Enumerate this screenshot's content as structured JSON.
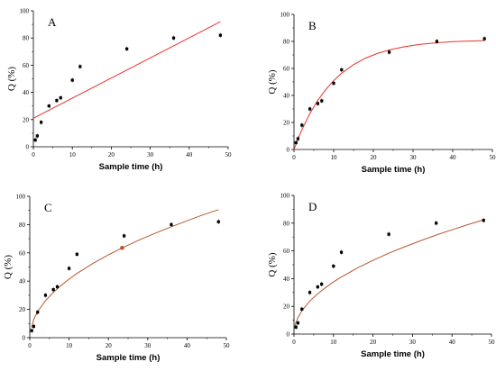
{
  "chart_data": [
    {
      "panel": "A",
      "type": "scatter",
      "xlabel": "Sample time (h)",
      "ylabel": "Q (%)",
      "xlim": [
        0,
        50
      ],
      "ylim": [
        0,
        100
      ],
      "xticks": [
        "0",
        "10",
        "20",
        "30",
        "40",
        "50"
      ],
      "yticks": [
        "0",
        "20",
        "40",
        "60",
        "80",
        "100"
      ],
      "points": {
        "x": [
          0.5,
          1,
          2,
          4,
          6,
          7,
          10,
          12,
          24,
          36,
          48
        ],
        "y": [
          5,
          8,
          18,
          30,
          34,
          36,
          49,
          59,
          72,
          80,
          82
        ]
      },
      "fit": {
        "model": "linear",
        "color": "#e8312b",
        "x": [
          0,
          48
        ],
        "y": [
          21,
          92
        ]
      }
    },
    {
      "panel": "B",
      "type": "scatter",
      "xlabel": "Sample time (h)",
      "ylabel": "Q (%)",
      "xlim": [
        0,
        50
      ],
      "ylim": [
        0,
        100
      ],
      "xticks": [
        "0",
        "10",
        "20",
        "30",
        "40",
        "50"
      ],
      "yticks": [
        "0",
        "20",
        "40",
        "60",
        "80",
        "100"
      ],
      "points": {
        "x": [
          0.5,
          1,
          2,
          4,
          6,
          7,
          10,
          12,
          24,
          36,
          48
        ],
        "y": [
          5,
          8,
          18,
          30,
          34,
          36,
          49,
          59,
          72,
          80,
          82
        ]
      },
      "fit": {
        "model": "first-order",
        "color": "#e8312b",
        "x": [
          0,
          1,
          2,
          4,
          6,
          8,
          10,
          12,
          15,
          18,
          21,
          24,
          28,
          32,
          36,
          40,
          44,
          48
        ],
        "y": [
          0,
          7.7,
          14.7,
          26.6,
          36.4,
          44.4,
          51.0,
          56.5,
          62.8,
          67.6,
          71.1,
          73.7,
          76.2,
          77.9,
          79.0,
          79.8,
          80.3,
          80.6
        ]
      }
    },
    {
      "panel": "C",
      "type": "scatter",
      "xlabel": "Sample time (h)",
      "ylabel": "Q (%)",
      "xlim": [
        0,
        50
      ],
      "ylim": [
        0,
        100
      ],
      "xticks": [
        "0",
        "10",
        "20",
        "30",
        "40",
        "50"
      ],
      "yticks": [
        "0",
        "20",
        "40",
        "60",
        "80",
        "100"
      ],
      "points": {
        "x": [
          0.5,
          1,
          2,
          4,
          6,
          7,
          10,
          12,
          24,
          36,
          48
        ],
        "y": [
          5,
          8,
          18,
          30,
          34,
          36,
          49,
          59,
          72,
          80,
          82
        ]
      },
      "fit": {
        "model": "power",
        "color": "#b5582c",
        "x": [
          0.5,
          1,
          2,
          4,
          6,
          8,
          10,
          12,
          16,
          20,
          23.5,
          28,
          32,
          36,
          40,
          44,
          48
        ],
        "y": [
          7.3,
          13,
          18.5,
          26.2,
          32.1,
          37.1,
          41.4,
          45.4,
          52.4,
          58.6,
          63.5,
          69.3,
          74,
          78.5,
          82.7,
          86.8,
          90.6
        ]
      },
      "marker": {
        "x": 23.5,
        "y": 63.5,
        "color": "#b5582c"
      }
    },
    {
      "panel": "D",
      "type": "scatter",
      "xlabel": "Sample time (h)",
      "ylabel": "Q (%)",
      "xlim": [
        0,
        50
      ],
      "ylim": [
        0,
        100
      ],
      "xticks": [
        "0",
        "10",
        "20",
        "30",
        "40",
        "50"
      ],
      "yticks": [
        "0",
        "20",
        "40",
        "60",
        "80",
        "100"
      ],
      "points": {
        "x": [
          0.5,
          1,
          2,
          4,
          6,
          7,
          10,
          12,
          24,
          36,
          48
        ],
        "y": [
          5,
          8,
          18,
          30,
          34,
          36,
          49,
          59,
          72,
          80,
          82
        ]
      },
      "fit": {
        "model": "Higuchi",
        "color": "#b5582c",
        "x": [
          0.2,
          0.5,
          1,
          2,
          4,
          6,
          8,
          10,
          12,
          16,
          20,
          24,
          28,
          32,
          36,
          40,
          44,
          48
        ],
        "y": [
          5.5,
          8.4,
          11.9,
          16.8,
          23.8,
          29.1,
          33.6,
          37.6,
          41.2,
          47.6,
          53.2,
          58.3,
          62.9,
          67.3,
          71.4,
          75.2,
          78.9,
          82.4
        ]
      }
    }
  ]
}
